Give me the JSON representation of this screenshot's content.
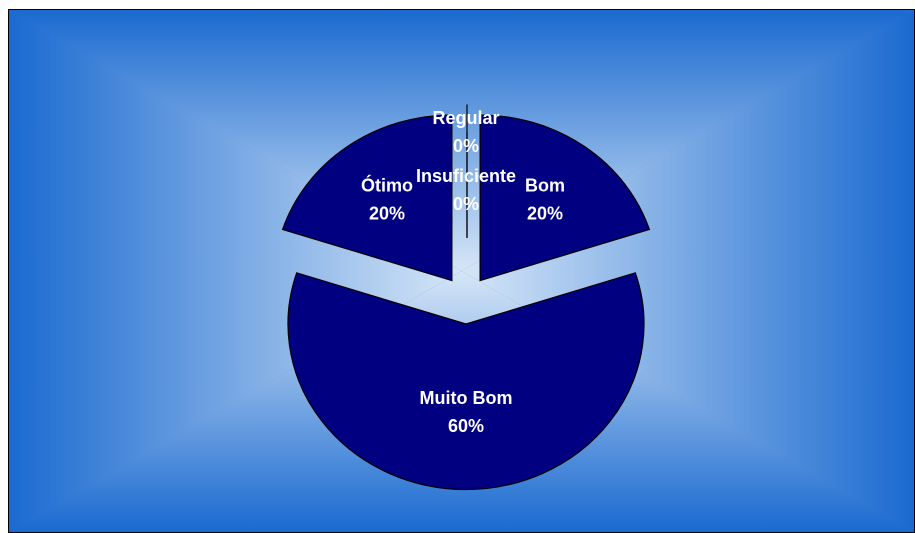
{
  "chart_data": {
    "type": "pie",
    "exploded": true,
    "colors": {
      "slice_fill": "#000080",
      "label_text": "#ffffff",
      "background_center": "#d6e6f7",
      "background_edge": "#1e6fd0"
    },
    "slices": [
      {
        "name": "Insuficiente",
        "value": 0,
        "percent_label": "0%"
      },
      {
        "name": "Regular",
        "value": 0,
        "percent_label": "0%"
      },
      {
        "name": "Bom",
        "value": 20,
        "percent_label": "20%"
      },
      {
        "name": "Muito Bom",
        "value": 60,
        "percent_label": "60%"
      },
      {
        "name": "Ótimo",
        "value": 20,
        "percent_label": "20%"
      }
    ]
  }
}
